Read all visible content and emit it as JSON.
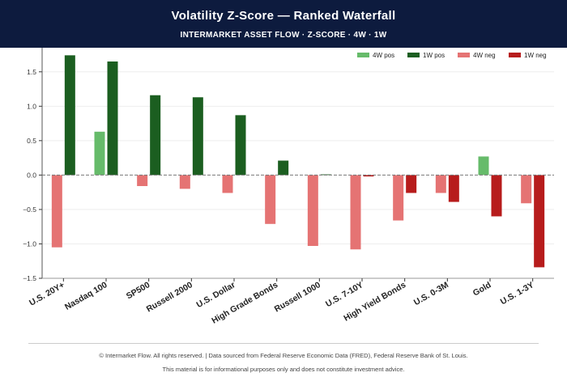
{
  "header": {
    "title": "Volatility Z-Score — Ranked Waterfall",
    "subtitle": "INTERMARKET ASSET FLOW  ·  Z-SCORE  ·  4W · 1W"
  },
  "footer": {
    "line1": "© Intermarket Flow. All rights reserved.  |  Data sourced from Federal Reserve Economic Data (FRED), Federal Reserve Bank of St. Louis.",
    "line2": "This material is for informational purposes only and does not constitute investment advice."
  },
  "colors": {
    "pos_4w": "#66bb6a",
    "pos_1w": "#1b5e20",
    "neg_4w": "#e57373",
    "neg_1w": "#b71c1c",
    "header_bg": "#0d1b3e"
  },
  "chart_data": {
    "type": "bar",
    "title": "Volatility Z-Score — Ranked Waterfall",
    "xlabel": "",
    "ylabel": "",
    "ylim": [
      -1.5,
      1.85
    ],
    "yticks": [
      -1.5,
      -1.0,
      -0.5,
      0.0,
      0.5,
      1.0,
      1.5
    ],
    "ytick_labels": [
      "−1.5",
      "−1.0",
      "−0.5",
      "0.0",
      "0.5",
      "1.0",
      "1.5"
    ],
    "grid": true,
    "legend_position": "top-right",
    "categories": [
      "U.S. 20Y+",
      "Nasdaq 100",
      "SP500",
      "Russell 2000",
      "U.S. Dollar",
      "High Grade Bonds",
      "Russell 1000",
      "U.S. 7-10Y",
      "High Yield Bonds",
      "U.S. 0-3M",
      "Gold",
      "U.S. 1-3Y"
    ],
    "legend": [
      "4W pos",
      "1W pos",
      "4W neg",
      "1W neg"
    ],
    "series": [
      {
        "name": "4W",
        "values": [
          -1.05,
          0.63,
          -0.16,
          -0.2,
          -0.26,
          -0.71,
          -1.03,
          -1.08,
          -0.66,
          -0.26,
          0.27,
          -0.41
        ]
      },
      {
        "name": "1W",
        "values": [
          1.74,
          1.65,
          1.16,
          1.13,
          0.87,
          0.21,
          0.01,
          -0.02,
          -0.26,
          -0.39,
          -0.6,
          -1.34
        ]
      }
    ]
  }
}
